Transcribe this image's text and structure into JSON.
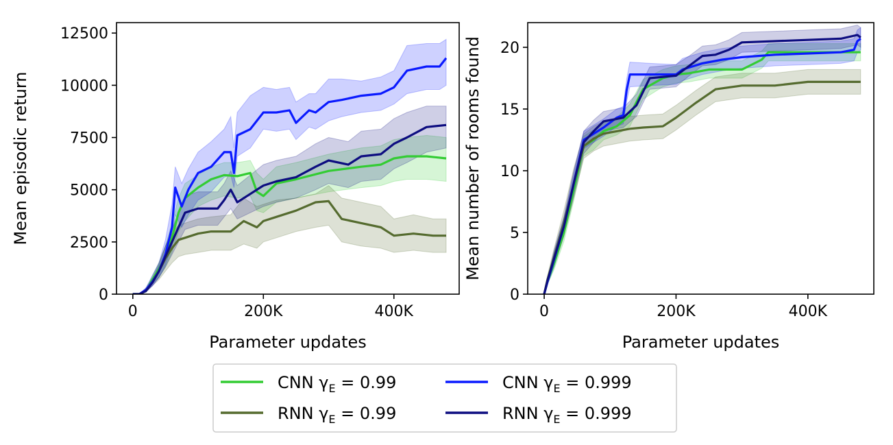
{
  "chart_data": [
    {
      "type": "line",
      "xlabel": "Parameter updates",
      "ylabel": "Mean episodic return",
      "xlim": [
        -25000,
        500000
      ],
      "ylim": [
        0,
        13000
      ],
      "xticks": [
        0,
        200000,
        400000
      ],
      "xtick_labels": [
        "0",
        "200K",
        "400K"
      ],
      "yticks": [
        0,
        2500,
        5000,
        7500,
        10000,
        12500
      ],
      "ytick_labels": [
        "0",
        "2500",
        "5000",
        "7500",
        "10000",
        "12500"
      ],
      "grid": false,
      "series": [
        {
          "name": "CNN γE = 0.99",
          "color": "#33cc33",
          "x": [
            0,
            10000,
            20000,
            30000,
            40000,
            50000,
            60000,
            70000,
            80000,
            100000,
            120000,
            140000,
            160000,
            180000,
            190000,
            200000,
            220000,
            250000,
            300000,
            350000,
            380000,
            400000,
            420000,
            450000,
            480000
          ],
          "y": [
            0,
            0,
            150,
            700,
            1200,
            1800,
            2700,
            3900,
            4600,
            5100,
            5500,
            5700,
            5650,
            5800,
            4900,
            4700,
            5300,
            5500,
            5900,
            6100,
            6200,
            6500,
            6600,
            6600,
            6500
          ],
          "lower": [
            0,
            0,
            100,
            500,
            800,
            1300,
            2000,
            3000,
            3500,
            4200,
            4500,
            4700,
            4600,
            4700,
            4000,
            3900,
            4400,
            4600,
            4900,
            5100,
            5200,
            5400,
            5500,
            5500,
            5400
          ],
          "upper": [
            0,
            0,
            200,
            900,
            1500,
            2300,
            3400,
            4600,
            5300,
            5700,
            6100,
            6300,
            6300,
            6400,
            5800,
            5500,
            6100,
            6300,
            6700,
            7000,
            7100,
            7400,
            7500,
            7600,
            7500
          ]
        },
        {
          "name": "RNN γE = 0.99",
          "color": "#556b2f",
          "x": [
            0,
            10000,
            20000,
            30000,
            40000,
            50000,
            60000,
            70000,
            80000,
            100000,
            120000,
            150000,
            170000,
            190000,
            200000,
            220000,
            250000,
            280000,
            300000,
            320000,
            350000,
            380000,
            400000,
            430000,
            460000,
            480000
          ],
          "y": [
            0,
            0,
            200,
            600,
            1100,
            1700,
            2200,
            2600,
            2700,
            2900,
            3000,
            3000,
            3500,
            3200,
            3500,
            3700,
            4000,
            4400,
            4450,
            3600,
            3400,
            3200,
            2800,
            2900,
            2800,
            2800
          ],
          "lower": [
            0,
            0,
            100,
            400,
            700,
            1100,
            1500,
            1800,
            1900,
            2000,
            2100,
            2100,
            2400,
            2200,
            2500,
            2700,
            3000,
            3200,
            3300,
            2500,
            2300,
            2200,
            2000,
            2100,
            2000,
            2000
          ],
          "upper": [
            0,
            0,
            300,
            800,
            1500,
            2300,
            2900,
            3300,
            3400,
            3600,
            3700,
            3800,
            4600,
            4200,
            4300,
            4500,
            4600,
            4800,
            5200,
            4600,
            4400,
            4200,
            3600,
            3800,
            3600,
            3600
          ]
        },
        {
          "name": "CNN γE = 0.999",
          "color": "#0a1aff",
          "x": [
            0,
            10000,
            20000,
            30000,
            40000,
            50000,
            60000,
            65000,
            75000,
            85000,
            100000,
            120000,
            140000,
            150000,
            155000,
            160000,
            180000,
            200000,
            220000,
            240000,
            250000,
            270000,
            280000,
            300000,
            320000,
            350000,
            380000,
            400000,
            420000,
            450000,
            470000,
            480000
          ],
          "y": [
            0,
            0,
            200,
            600,
            1100,
            1900,
            3200,
            5100,
            4200,
            5000,
            5800,
            6100,
            6800,
            6800,
            5800,
            7600,
            7900,
            8700,
            8700,
            8800,
            8200,
            8800,
            8700,
            9200,
            9300,
            9500,
            9600,
            9900,
            10700,
            10900,
            10900,
            11300
          ],
          "lower": [
            0,
            0,
            150,
            400,
            800,
            1400,
            2300,
            3800,
            3200,
            3800,
            4500,
            4900,
            5600,
            5700,
            5100,
            6600,
            7000,
            7900,
            7800,
            7900,
            7400,
            8000,
            7900,
            8300,
            8500,
            8700,
            8800,
            9100,
            9600,
            9800,
            9800,
            10000
          ],
          "upper": [
            0,
            0,
            300,
            900,
            1500,
            2600,
            4300,
            6100,
            5300,
            6000,
            6800,
            7300,
            7900,
            8500,
            7000,
            8700,
            9500,
            9900,
            9800,
            9900,
            9200,
            9600,
            9600,
            10300,
            10300,
            10200,
            10400,
            10700,
            11900,
            12000,
            12000,
            12200
          ]
        },
        {
          "name": "RNN γE = 0.999",
          "color": "#0d0d80",
          "x": [
            0,
            10000,
            20000,
            30000,
            40000,
            50000,
            60000,
            70000,
            80000,
            100000,
            130000,
            140000,
            150000,
            160000,
            180000,
            200000,
            220000,
            250000,
            280000,
            300000,
            330000,
            350000,
            380000,
            400000,
            420000,
            450000,
            480000
          ],
          "y": [
            0,
            0,
            150,
            550,
            1100,
            1800,
            2500,
            3200,
            3900,
            4100,
            4100,
            4500,
            5000,
            4400,
            4800,
            5200,
            5400,
            5600,
            6100,
            6400,
            6200,
            6600,
            6700,
            7200,
            7500,
            8000,
            8100
          ],
          "lower": [
            0,
            0,
            100,
            400,
            800,
            1300,
            1900,
            2500,
            3100,
            3300,
            3300,
            3700,
            4100,
            3600,
            3900,
            4200,
            4400,
            4600,
            5000,
            5300,
            5100,
            5400,
            5500,
            6000,
            6300,
            6800,
            7000
          ],
          "upper": [
            0,
            0,
            200,
            700,
            1400,
            2300,
            3100,
            3900,
            4700,
            4900,
            4900,
            5300,
            5900,
            5200,
            5700,
            6200,
            6400,
            6600,
            7200,
            7500,
            7300,
            7800,
            7900,
            8400,
            8700,
            9000,
            9000
          ]
        }
      ]
    },
    {
      "type": "line",
      "xlabel": "Parameter updates",
      "ylabel": "Mean number of rooms found",
      "xlim": [
        -25000,
        500000
      ],
      "ylim": [
        0,
        22
      ],
      "xticks": [
        0,
        200000,
        400000
      ],
      "xtick_labels": [
        "0",
        "200K",
        "400K"
      ],
      "yticks": [
        0,
        5,
        10,
        15,
        20
      ],
      "ytick_labels": [
        "0",
        "5",
        "10",
        "15",
        "20"
      ],
      "grid": false,
      "series": [
        {
          "name": "CNN γE = 0.99",
          "color": "#33cc33",
          "x": [
            0,
            5000,
            15000,
            30000,
            45000,
            60000,
            75000,
            90000,
            110000,
            130000,
            150000,
            180000,
            200000,
            220000,
            250000,
            300000,
            330000,
            340000,
            400000,
            480000
          ],
          "y": [
            0,
            1,
            2.5,
            5,
            8.5,
            12,
            12.5,
            13.2,
            13.6,
            14.5,
            16.6,
            17.5,
            17.8,
            17.9,
            18.2,
            18.2,
            19.0,
            19.6,
            19.6,
            19.6
          ],
          "lower": [
            0,
            0.8,
            2.0,
            4.3,
            7.6,
            11.2,
            11.7,
            12.5,
            12.9,
            13.6,
            15.8,
            16.8,
            17.1,
            17.2,
            17.5,
            17.5,
            18.3,
            18.9,
            18.9,
            18.9
          ],
          "upper": [
            0,
            1.2,
            3.0,
            5.7,
            9.4,
            12.8,
            13.3,
            13.9,
            14.3,
            15.4,
            17.4,
            18.2,
            18.5,
            18.6,
            18.9,
            18.9,
            19.7,
            20.3,
            20.3,
            20.3
          ]
        },
        {
          "name": "RNN γE = 0.99",
          "color": "#556b2f",
          "x": [
            0,
            5000,
            15000,
            30000,
            45000,
            60000,
            75000,
            90000,
            110000,
            130000,
            150000,
            180000,
            200000,
            230000,
            260000,
            300000,
            350000,
            400000,
            480000
          ],
          "y": [
            0,
            1.2,
            3.0,
            5.8,
            9.0,
            12.0,
            12.6,
            13.0,
            13.2,
            13.4,
            13.5,
            13.6,
            14.3,
            15.5,
            16.6,
            16.9,
            16.9,
            17.2,
            17.2
          ],
          "lower": [
            0,
            0.9,
            2.3,
            4.8,
            7.8,
            11.0,
            11.6,
            12.0,
            12.2,
            12.4,
            12.5,
            12.6,
            13.3,
            14.5,
            15.6,
            15.9,
            15.9,
            16.2,
            16.2
          ],
          "upper": [
            0,
            1.5,
            3.7,
            6.8,
            10.2,
            13.0,
            13.6,
            14.0,
            14.2,
            14.4,
            14.5,
            14.6,
            15.3,
            16.5,
            17.6,
            17.9,
            17.9,
            18.2,
            18.2
          ]
        },
        {
          "name": "CNN γE = 0.999",
          "color": "#0a1aff",
          "x": [
            0,
            5000,
            15000,
            30000,
            45000,
            60000,
            75000,
            90000,
            110000,
            120000,
            125000,
            130000,
            160000,
            200000,
            210000,
            240000,
            270000,
            300000,
            350000,
            400000,
            450000,
            470000,
            475000,
            480000
          ],
          "y": [
            0,
            1,
            2.8,
            5.5,
            9.0,
            12.5,
            13.0,
            13.5,
            14.3,
            14.5,
            16.5,
            17.8,
            17.8,
            17.8,
            18.2,
            18.7,
            19.0,
            19.2,
            19.4,
            19.5,
            19.6,
            19.8,
            20.5,
            20.7
          ],
          "lower": [
            0,
            0.8,
            2.2,
            4.8,
            8.2,
            11.8,
            12.3,
            12.8,
            13.6,
            13.8,
            15.6,
            16.8,
            16.9,
            17.0,
            17.3,
            17.8,
            18.1,
            18.3,
            18.5,
            18.6,
            18.7,
            18.9,
            19.6,
            19.8
          ],
          "upper": [
            0,
            1.2,
            3.4,
            6.2,
            9.8,
            13.2,
            13.7,
            14.2,
            15.0,
            15.2,
            17.4,
            18.8,
            18.7,
            18.6,
            19.1,
            19.6,
            19.9,
            20.1,
            20.3,
            20.4,
            20.5,
            20.7,
            21.4,
            21.6
          ]
        },
        {
          "name": "RNN γE = 0.999",
          "color": "#0d0d80",
          "x": [
            0,
            5000,
            15000,
            30000,
            45000,
            60000,
            75000,
            90000,
            110000,
            120000,
            140000,
            160000,
            180000,
            200000,
            220000,
            240000,
            260000,
            280000,
            300000,
            350000,
            400000,
            450000,
            475000,
            480000
          ],
          "y": [
            0,
            1.1,
            2.9,
            5.5,
            9.0,
            12.3,
            13.2,
            14.0,
            14.2,
            14.3,
            15.3,
            17.5,
            17.6,
            17.7,
            18.5,
            19.3,
            19.4,
            19.8,
            20.4,
            20.5,
            20.6,
            20.7,
            21.0,
            20.8
          ],
          "lower": [
            0,
            0.9,
            2.3,
            4.7,
            8.0,
            11.4,
            12.3,
            13.2,
            13.4,
            13.5,
            14.4,
            16.6,
            16.7,
            16.8,
            17.7,
            18.5,
            18.6,
            19.0,
            19.6,
            19.7,
            19.8,
            19.9,
            20.2,
            20.0
          ],
          "upper": [
            0,
            1.3,
            3.5,
            6.3,
            10.0,
            13.2,
            14.1,
            14.8,
            15.0,
            15.1,
            16.2,
            18.4,
            18.5,
            18.6,
            19.3,
            20.1,
            20.2,
            20.6,
            21.2,
            21.3,
            21.4,
            21.5,
            21.8,
            21.6
          ]
        }
      ]
    }
  ],
  "legend": {
    "placement": "bottom-center",
    "entries": [
      {
        "label": "CNN γ",
        "sub": "E",
        "eq": " = 0.99",
        "color": "#33cc33"
      },
      {
        "label": "CNN γ",
        "sub": "E",
        "eq": " = 0.999",
        "color": "#0a1aff"
      },
      {
        "label": "RNN γ",
        "sub": "E",
        "eq": " = 0.99",
        "color": "#556b2f"
      },
      {
        "label": "RNN γ",
        "sub": "E",
        "eq": " = 0.999",
        "color": "#0d0d80"
      }
    ]
  }
}
